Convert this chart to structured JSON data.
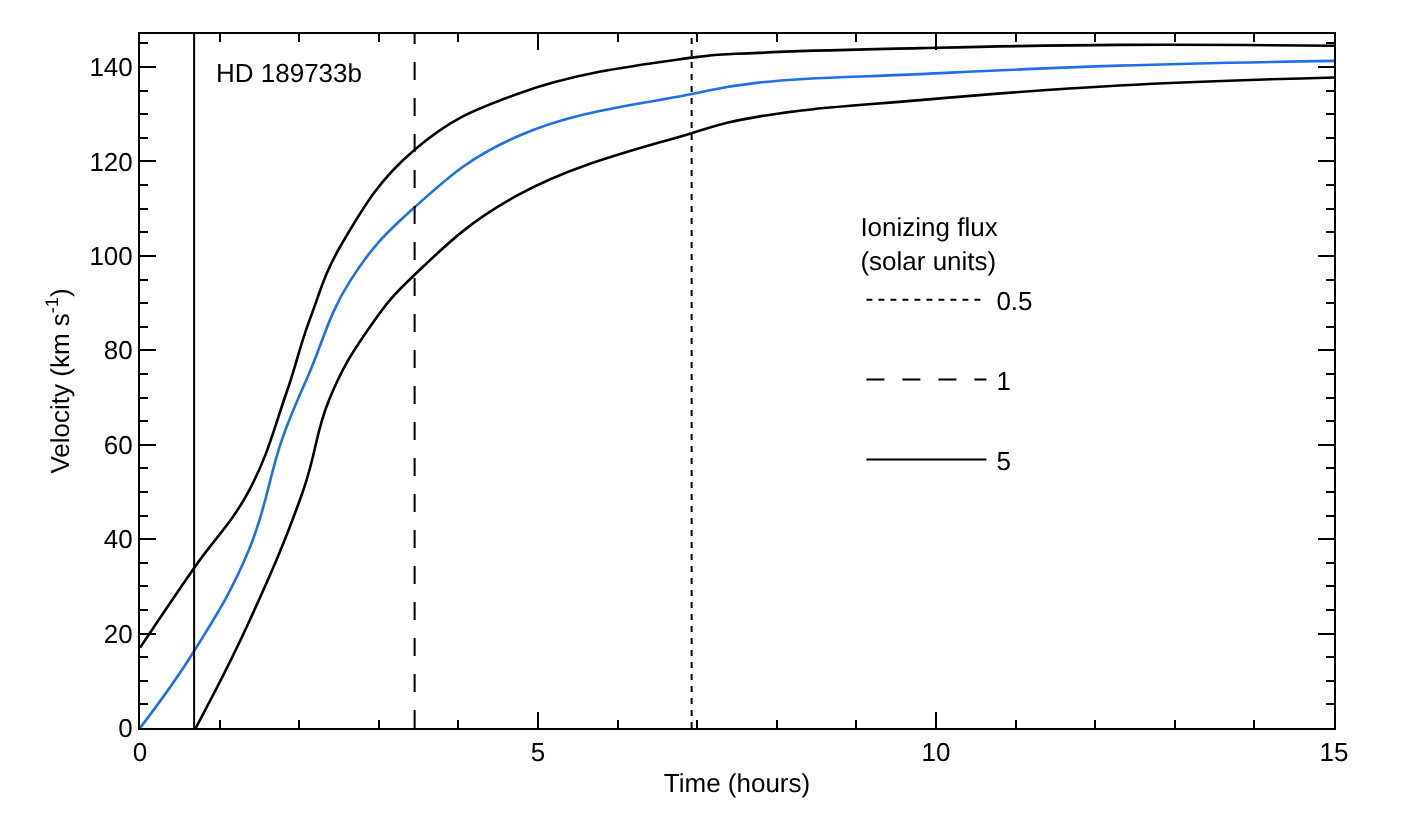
{
  "chart_data": {
    "type": "line",
    "xlabel": "Time (hours)",
    "ylabel": "Velocity (km s$^{-1}$)",
    "legend_title": "Ionizing flux\n(solar units)",
    "xlim": [
      0,
      15
    ],
    "xticks": [
      0,
      5,
      10,
      15
    ],
    "ylim": [
      0,
      147
    ],
    "yticks": [
      0,
      20,
      40,
      60,
      80,
      100,
      120,
      140
    ],
    "legend": "right",
    "marker": "none",
    "line_style": "solid",
    "annotations": [
      "HD 189733b"
    ],
    "series": [
      {
        "color": "#000000",
        "x": [
          0,
          0.68,
          1.37,
          1.84,
          2.13,
          2.55,
          3.45,
          4.74,
          6.93,
          7.77,
          9.8,
          12.3,
          15
        ],
        "values": [
          17,
          33.9,
          50.3,
          71,
          86.4,
          103,
          122.5,
          134.3,
          142,
          143,
          144,
          144.7,
          144.5
        ]
      },
      {
        "color": "#1f6fe8",
        "x": [
          0,
          0.68,
          1.37,
          1.79,
          2.13,
          2.64,
          3.45,
          4.74,
          6.93,
          7.77,
          9.8,
          12.3,
          15
        ],
        "values": [
          0,
          16.3,
          37.8,
          61.4,
          75.3,
          94.7,
          110.3,
          125.3,
          134.3,
          136.7,
          138.5,
          140.3,
          141.3
        ]
      },
      {
        "color": "#000000",
        "x": [
          0.7,
          1.37,
          2.05,
          2.38,
          2.89,
          3.45,
          4.74,
          6.93,
          7.77,
          9.8,
          12.3,
          15
        ],
        "values": [
          0,
          22.5,
          50.3,
          69.7,
          85,
          96,
          112.8,
          126,
          129.5,
          133,
          136.1,
          137.8
        ]
      },
      {
        "name": "0.5",
        "color": "#000000",
        "line_style": "dotted",
        "x": [
          6.93,
          6.93
        ],
        "values": [
          0,
          147
        ]
      },
      {
        "name": "1",
        "color": "#000000",
        "line_style": "dashed",
        "x": [
          3.45,
          3.45
        ],
        "values": [
          0,
          147
        ]
      },
      {
        "name": "5",
        "color": "#000000",
        "line_style": "solid",
        "x": [
          0.68,
          0.68
        ],
        "values": [
          0,
          147
        ]
      }
    ]
  }
}
